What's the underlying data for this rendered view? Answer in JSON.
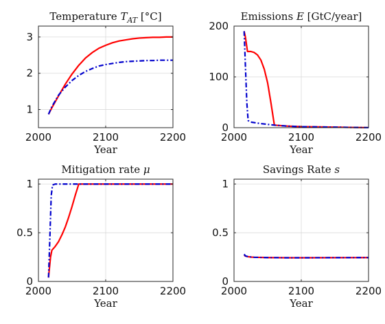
{
  "colors": {
    "series1": "#ff0000",
    "series2": "#0000cc"
  },
  "chart_data": [
    {
      "type": "line",
      "title": "Temperature T_AT [°C]",
      "title_parts": [
        "Temperature ",
        "T",
        "AT",
        " [°C]"
      ],
      "xlabel": "Year",
      "ylabel": "",
      "xlim": [
        2000,
        2200
      ],
      "ylim": [
        0.5,
        3.3
      ],
      "xticks": [
        2000,
        2100,
        2200
      ],
      "yticks": [
        1,
        2,
        3
      ],
      "grid": true,
      "series": [
        {
          "x": [
            2015,
            2020,
            2030,
            2040,
            2050,
            2060,
            2070,
            2080,
            2090,
            2100,
            2110,
            2120,
            2130,
            2140,
            2150,
            2160,
            2170,
            2180,
            2190,
            2200
          ],
          "y": [
            0.87,
            1.05,
            1.38,
            1.7,
            1.98,
            2.22,
            2.42,
            2.57,
            2.69,
            2.77,
            2.84,
            2.89,
            2.92,
            2.95,
            2.97,
            2.98,
            2.99,
            2.99,
            3.0,
            3.0
          ],
          "color": "#ff0000",
          "dash": "solid"
        },
        {
          "x": [
            2015,
            2020,
            2030,
            2040,
            2050,
            2060,
            2070,
            2080,
            2090,
            2100,
            2110,
            2120,
            2130,
            2140,
            2150,
            2160,
            2170,
            2180,
            2190,
            2200
          ],
          "y": [
            0.87,
            1.08,
            1.4,
            1.62,
            1.8,
            1.94,
            2.05,
            2.13,
            2.2,
            2.24,
            2.27,
            2.3,
            2.32,
            2.33,
            2.34,
            2.35,
            2.35,
            2.36,
            2.36,
            2.36
          ],
          "color": "#0000cc",
          "dash": "dashdot"
        }
      ]
    },
    {
      "type": "line",
      "title": "Emissions E [GtC/year]",
      "title_parts": [
        "Emissions ",
        "E",
        "",
        " [GtC/year]"
      ],
      "xlabel": "Year",
      "ylabel": "",
      "xlim": [
        2000,
        2200
      ],
      "ylim": [
        0,
        200
      ],
      "xticks": [
        2000,
        2100,
        2200
      ],
      "yticks": [
        0,
        100,
        200
      ],
      "grid": true,
      "series": [
        {
          "x": [
            2015,
            2017,
            2020,
            2025,
            2030,
            2035,
            2040,
            2045,
            2050,
            2055,
            2060,
            2080,
            2100,
            2150,
            2200
          ],
          "y": [
            190,
            178,
            150,
            150,
            148,
            143,
            133,
            115,
            88,
            48,
            5,
            3,
            2,
            1,
            0
          ],
          "color": "#ff0000",
          "dash": "solid"
        },
        {
          "x": [
            2015,
            2017,
            2019,
            2021,
            2025,
            2040,
            2060,
            2080,
            2100,
            2150,
            2200
          ],
          "y": [
            190,
            120,
            50,
            14,
            11,
            8,
            5,
            3,
            2,
            1,
            0
          ],
          "color": "#0000cc",
          "dash": "dashdot"
        }
      ]
    },
    {
      "type": "line",
      "title": "Mitigation rate μ",
      "title_parts": [
        "Mitigation rate ",
        "μ",
        "",
        ""
      ],
      "xlabel": "Year",
      "ylabel": "",
      "xlim": [
        2000,
        2200
      ],
      "ylim": [
        0,
        1.05
      ],
      "xticks": [
        2000,
        2100,
        2200
      ],
      "yticks": [
        0,
        0.5,
        1
      ],
      "grid": true,
      "series": [
        {
          "x": [
            2015,
            2018,
            2020,
            2025,
            2030,
            2035,
            2040,
            2045,
            2050,
            2055,
            2060,
            2080,
            2100,
            2150,
            2200
          ],
          "y": [
            0.04,
            0.25,
            0.32,
            0.36,
            0.41,
            0.48,
            0.56,
            0.66,
            0.77,
            0.89,
            1.0,
            1.0,
            1.0,
            1.0,
            1.0
          ],
          "color": "#ff0000",
          "dash": "solid"
        },
        {
          "x": [
            2015,
            2017,
            2019,
            2021,
            2025,
            2060,
            2100,
            2150,
            2200
          ],
          "y": [
            0.04,
            0.45,
            0.88,
            0.99,
            1.0,
            1.0,
            1.0,
            1.0,
            1.0
          ],
          "color": "#0000cc",
          "dash": "dashdot"
        }
      ]
    },
    {
      "type": "line",
      "title": "Savings Rate s",
      "title_parts": [
        "Savings Rate ",
        "s",
        "",
        ""
      ],
      "xlabel": "Year",
      "ylabel": "",
      "xlim": [
        2000,
        2200
      ],
      "ylim": [
        0,
        1.05
      ],
      "xticks": [
        2000,
        2100,
        2200
      ],
      "yticks": [
        0,
        0.5,
        1
      ],
      "grid": true,
      "series": [
        {
          "x": [
            2015,
            2017,
            2020,
            2025,
            2030,
            2050,
            2080,
            2100,
            2150,
            2200
          ],
          "y": [
            0.27,
            0.26,
            0.255,
            0.25,
            0.248,
            0.245,
            0.243,
            0.243,
            0.244,
            0.245
          ],
          "color": "#ff0000",
          "dash": "solid"
        },
        {
          "x": [
            2015,
            2017,
            2020,
            2025,
            2030,
            2050,
            2080,
            2100,
            2150,
            2200
          ],
          "y": [
            0.28,
            0.262,
            0.256,
            0.251,
            0.248,
            0.245,
            0.243,
            0.243,
            0.244,
            0.245
          ],
          "color": "#0000cc",
          "dash": "dashdot"
        }
      ]
    }
  ]
}
